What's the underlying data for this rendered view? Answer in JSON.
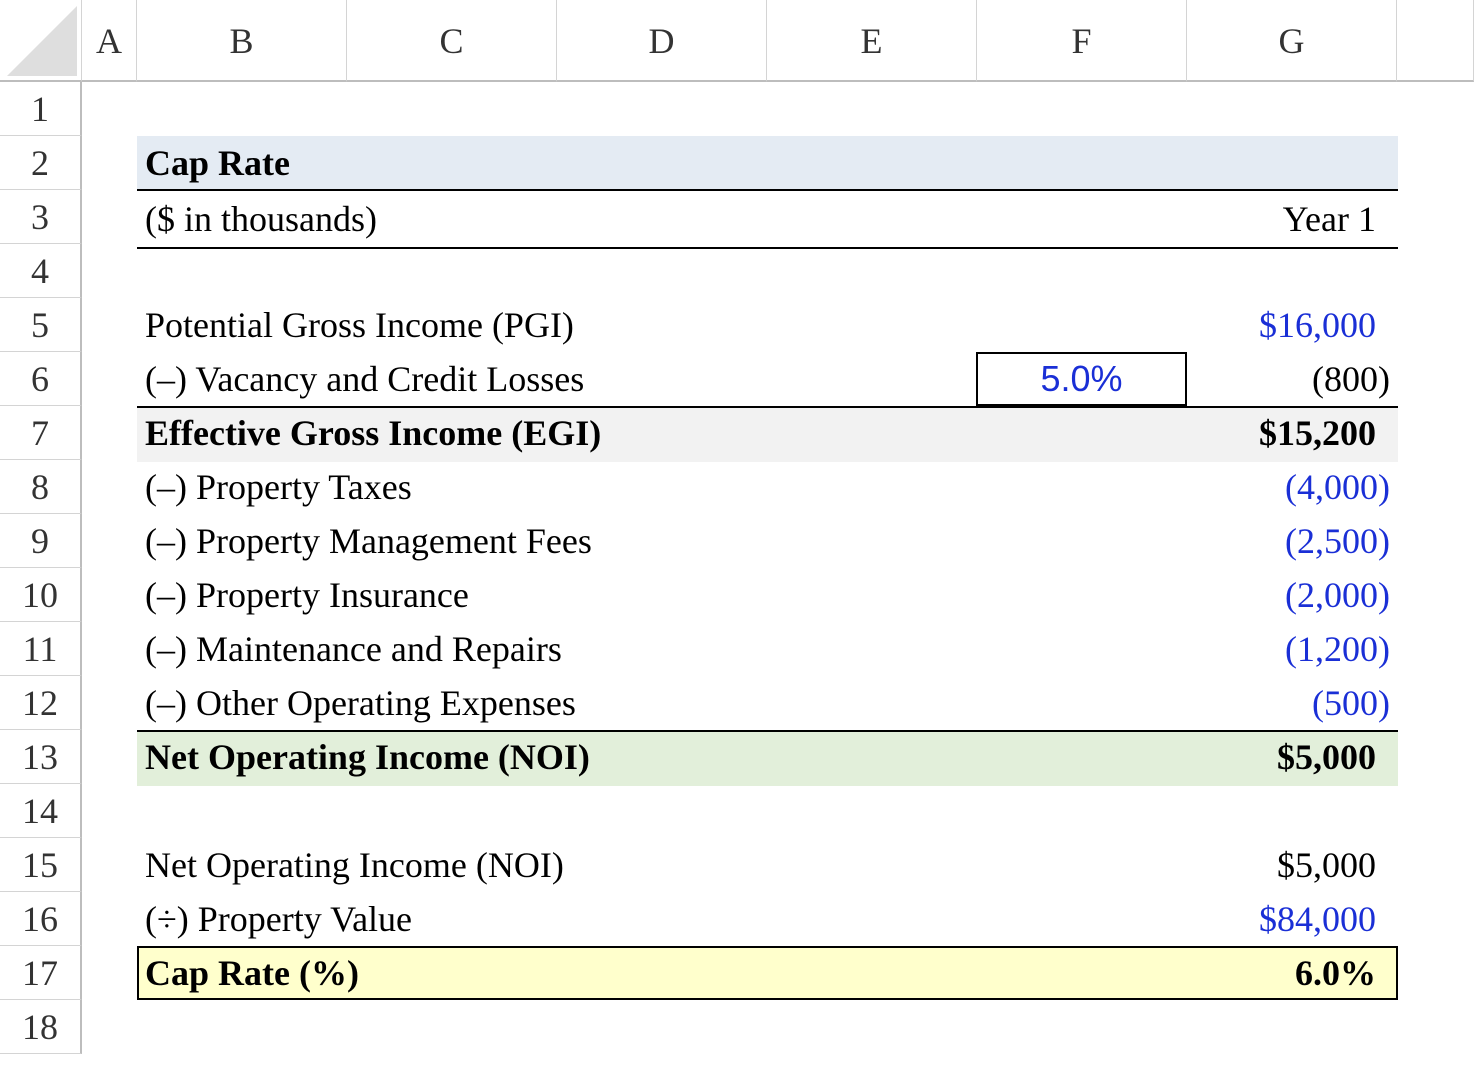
{
  "columns": [
    "A",
    "B",
    "C",
    "D",
    "E",
    "F",
    "G"
  ],
  "rows": [
    "1",
    "2",
    "3",
    "4",
    "5",
    "6",
    "7",
    "8",
    "9",
    "10",
    "11",
    "12",
    "13",
    "14",
    "15",
    "16",
    "17",
    "18"
  ],
  "sheet": {
    "title": "Cap Rate",
    "units": "($ in thousands)",
    "period_header": "Year 1",
    "pgi": {
      "label": "Potential Gross Income (PGI)",
      "value": "$16,000"
    },
    "vacancy": {
      "label": "(–) Vacancy and Credit Losses",
      "rate": "5.0%",
      "value": "(800)"
    },
    "egi": {
      "label": "Effective Gross Income (EGI)",
      "value": "$15,200"
    },
    "expenses": [
      {
        "label": "(–) Property Taxes",
        "value": "(4,000)"
      },
      {
        "label": "(–) Property Management Fees",
        "value": "(2,500)"
      },
      {
        "label": "(–) Property Insurance",
        "value": "(2,000)"
      },
      {
        "label": "(–) Maintenance and Repairs",
        "value": "(1,200)"
      },
      {
        "label": "(–) Other Operating Expenses",
        "value": "(500)"
      }
    ],
    "noi": {
      "label": "Net Operating Income (NOI)",
      "value": "$5,000"
    },
    "noi_ref": {
      "label": "Net Operating Income (NOI)",
      "value": "$5,000"
    },
    "property_value": {
      "label": "(÷) Property Value",
      "value": "$84,000"
    },
    "cap_rate": {
      "label": "Cap Rate (%)",
      "value": "6.0%"
    }
  },
  "colors": {
    "input_blue": "#1a2fd6",
    "title_fill": "#e4ebf3",
    "egi_fill": "#f2f2f2",
    "noi_fill": "#e2efda",
    "cap_fill": "#ffffcc"
  }
}
